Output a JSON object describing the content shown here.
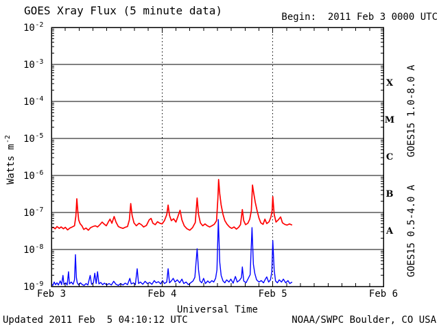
{
  "chart_data": {
    "type": "line",
    "title": "GOES Xray Flux (5 minute data)",
    "begin_label": "Begin:  2011 Feb 3 0000 UTC",
    "xlabel": "Universal Time",
    "ylabel_base": "Watts m",
    "ylabel_exponent": "-2",
    "footer_left": "Updated 2011 Feb  5 04:10:12 UTC",
    "footer_right": "NOAA/SWPC Boulder, CO USA",
    "legend_position": "right-rotated",
    "grid": true,
    "colors": {
      "axis": "#000000",
      "background": "#ffffff",
      "long_band": "#ff0000",
      "short_band": "#0000ff"
    },
    "x_axis": {
      "range_hours": [
        0,
        72
      ],
      "minor_tick_hours": 3,
      "day_line_hours": [
        24,
        48
      ],
      "ticks": [
        {
          "hours": 0,
          "label": "Feb 3"
        },
        {
          "hours": 24,
          "label": "Feb 4"
        },
        {
          "hours": 48,
          "label": "Feb 5"
        },
        {
          "hours": 72,
          "label": "Feb 6"
        }
      ]
    },
    "y_axis": {
      "scale": "log10",
      "unit": "Watts m^-2",
      "range_log10": [
        -9,
        -2
      ],
      "tick_exponents": [
        -2,
        -3,
        -4,
        -5,
        -6,
        -7,
        -8,
        -9
      ],
      "gridline_exponents": [
        -3,
        -4,
        -5,
        -6,
        -7,
        -8
      ]
    },
    "flare_classes": [
      {
        "label": "X",
        "log10_range": [
          -4,
          -3
        ]
      },
      {
        "label": "M",
        "log10_range": [
          -5,
          -4
        ]
      },
      {
        "label": "C",
        "log10_range": [
          -6,
          -5
        ]
      },
      {
        "label": "B",
        "log10_range": [
          -7,
          -6
        ]
      },
      {
        "label": "A",
        "log10_range": [
          -8,
          -7
        ]
      }
    ],
    "points_units": [
      "hours_since_begin",
      "log10_watts_per_m2"
    ],
    "series": [
      {
        "name": "GOES15 1.0-8.0 A",
        "color": "#ff0000",
        "points": [
          [
            0,
            -7.42
          ],
          [
            0.4,
            -7.4
          ],
          [
            0.8,
            -7.44
          ],
          [
            1.2,
            -7.38
          ],
          [
            1.7,
            -7.43
          ],
          [
            2.1,
            -7.39
          ],
          [
            2.6,
            -7.44
          ],
          [
            3,
            -7.4
          ],
          [
            3.5,
            -7.47
          ],
          [
            4,
            -7.42
          ],
          [
            4.5,
            -7.39
          ],
          [
            5,
            -7.36
          ],
          [
            5.3,
            -7.1
          ],
          [
            5.5,
            -6.63
          ],
          [
            5.7,
            -6.95
          ],
          [
            5.9,
            -7.2
          ],
          [
            6.2,
            -7.3
          ],
          [
            6.6,
            -7.36
          ],
          [
            7,
            -7.46
          ],
          [
            7.5,
            -7.42
          ],
          [
            8,
            -7.48
          ],
          [
            8.5,
            -7.41
          ],
          [
            9,
            -7.38
          ],
          [
            9.5,
            -7.36
          ],
          [
            10,
            -7.39
          ],
          [
            10.5,
            -7.33
          ],
          [
            11,
            -7.26
          ],
          [
            11.4,
            -7.31
          ],
          [
            11.9,
            -7.36
          ],
          [
            12.4,
            -7.24
          ],
          [
            12.7,
            -7.18
          ],
          [
            13.1,
            -7.29
          ],
          [
            13.6,
            -7.11
          ],
          [
            14,
            -7.26
          ],
          [
            14.5,
            -7.38
          ],
          [
            15,
            -7.41
          ],
          [
            15.5,
            -7.43
          ],
          [
            16,
            -7.4
          ],
          [
            16.5,
            -7.38
          ],
          [
            16.9,
            -7.2
          ],
          [
            17.2,
            -6.76
          ],
          [
            17.5,
            -7.08
          ],
          [
            17.9,
            -7.28
          ],
          [
            18.4,
            -7.36
          ],
          [
            19,
            -7.29
          ],
          [
            19.5,
            -7.33
          ],
          [
            20,
            -7.39
          ],
          [
            20.6,
            -7.35
          ],
          [
            21.2,
            -7.2
          ],
          [
            21.6,
            -7.16
          ],
          [
            22,
            -7.29
          ],
          [
            22.5,
            -7.33
          ],
          [
            23,
            -7.25
          ],
          [
            23.5,
            -7.29
          ],
          [
            24,
            -7.31
          ],
          [
            24.5,
            -7.22
          ],
          [
            25,
            -7.06
          ],
          [
            25.3,
            -6.8
          ],
          [
            25.6,
            -7.08
          ],
          [
            26,
            -7.22
          ],
          [
            26.5,
            -7.17
          ],
          [
            27,
            -7.26
          ],
          [
            27.5,
            -7.08
          ],
          [
            27.9,
            -6.94
          ],
          [
            28.3,
            -7.2
          ],
          [
            28.8,
            -7.36
          ],
          [
            29.4,
            -7.44
          ],
          [
            30,
            -7.48
          ],
          [
            30.6,
            -7.41
          ],
          [
            31.2,
            -7.27
          ],
          [
            31.6,
            -6.61
          ],
          [
            31.9,
            -7.05
          ],
          [
            32.3,
            -7.28
          ],
          [
            32.8,
            -7.36
          ],
          [
            33.3,
            -7.31
          ],
          [
            33.8,
            -7.36
          ],
          [
            34.3,
            -7.39
          ],
          [
            34.8,
            -7.36
          ],
          [
            35.3,
            -7.32
          ],
          [
            35.8,
            -7.22
          ],
          [
            36.1,
            -6.6
          ],
          [
            36.25,
            -6.11
          ],
          [
            36.5,
            -6.5
          ],
          [
            36.8,
            -6.8
          ],
          [
            37.2,
            -7.05
          ],
          [
            37.6,
            -7.22
          ],
          [
            38.1,
            -7.32
          ],
          [
            38.6,
            -7.39
          ],
          [
            39.1,
            -7.43
          ],
          [
            39.6,
            -7.39
          ],
          [
            40.1,
            -7.45
          ],
          [
            40.6,
            -7.4
          ],
          [
            41,
            -7.33
          ],
          [
            41.4,
            -6.92
          ],
          [
            41.7,
            -7.22
          ],
          [
            42.1,
            -7.33
          ],
          [
            42.6,
            -7.29
          ],
          [
            43,
            -7.18
          ],
          [
            43.35,
            -6.95
          ],
          [
            43.6,
            -6.26
          ],
          [
            43.9,
            -6.5
          ],
          [
            44.2,
            -6.72
          ],
          [
            44.6,
            -6.95
          ],
          [
            45,
            -7.15
          ],
          [
            45.4,
            -7.28
          ],
          [
            45.9,
            -7.32
          ],
          [
            46.3,
            -7.18
          ],
          [
            46.7,
            -7.3
          ],
          [
            47.2,
            -7.25
          ],
          [
            47.6,
            -7.12
          ],
          [
            47.85,
            -6.95
          ],
          [
            48,
            -6.57
          ],
          [
            48.3,
            -7.05
          ],
          [
            48.7,
            -7.26
          ],
          [
            49.2,
            -7.2
          ],
          [
            49.7,
            -7.12
          ],
          [
            50.1,
            -7.28
          ],
          [
            50.6,
            -7.32
          ],
          [
            51.1,
            -7.34
          ],
          [
            51.6,
            -7.31
          ],
          [
            52.2,
            -7.34
          ]
        ]
      },
      {
        "name": "GOES15 0.5-4.0 A",
        "color": "#0000ff",
        "points": [
          [
            0,
            -8.93
          ],
          [
            0.3,
            -8.97
          ],
          [
            0.6,
            -8.88
          ],
          [
            0.9,
            -8.95
          ],
          [
            1.2,
            -8.9
          ],
          [
            1.5,
            -8.96
          ],
          [
            1.9,
            -8.85
          ],
          [
            2.2,
            -8.95
          ],
          [
            2.5,
            -8.7
          ],
          [
            2.7,
            -8.94
          ],
          [
            3.1,
            -8.9
          ],
          [
            3.4,
            -8.96
          ],
          [
            3.7,
            -8.6
          ],
          [
            3.9,
            -8.93
          ],
          [
            4.3,
            -8.88
          ],
          [
            4.7,
            -8.94
          ],
          [
            5,
            -8.82
          ],
          [
            5.2,
            -8.14
          ],
          [
            5.4,
            -8.75
          ],
          [
            5.6,
            -8.9
          ],
          [
            5.9,
            -8.96
          ],
          [
            6.3,
            -8.9
          ],
          [
            6.7,
            -8.95
          ],
          [
            7.1,
            -8.97
          ],
          [
            7.5,
            -8.92
          ],
          [
            7.9,
            -8.96
          ],
          [
            8.4,
            -8.7
          ],
          [
            8.7,
            -8.94
          ],
          [
            9.1,
            -8.9
          ],
          [
            9.4,
            -8.64
          ],
          [
            9.7,
            -8.92
          ],
          [
            10,
            -8.6
          ],
          [
            10.3,
            -8.93
          ],
          [
            10.7,
            -8.89
          ],
          [
            11.1,
            -8.95
          ],
          [
            11.5,
            -8.91
          ],
          [
            12,
            -8.96
          ],
          [
            12.5,
            -8.92
          ],
          [
            13,
            -8.96
          ],
          [
            13.5,
            -8.86
          ],
          [
            14,
            -8.94
          ],
          [
            14.5,
            -8.97
          ],
          [
            15,
            -8.92
          ],
          [
            15.5,
            -8.96
          ],
          [
            16,
            -8.91
          ],
          [
            16.5,
            -8.95
          ],
          [
            17,
            -8.78
          ],
          [
            17.3,
            -8.93
          ],
          [
            17.8,
            -8.9
          ],
          [
            18.2,
            -8.95
          ],
          [
            18.6,
            -8.52
          ],
          [
            18.9,
            -8.92
          ],
          [
            19.3,
            -8.88
          ],
          [
            19.8,
            -8.94
          ],
          [
            20.3,
            -8.86
          ],
          [
            20.8,
            -8.92
          ],
          [
            21.3,
            -8.89
          ],
          [
            21.8,
            -8.94
          ],
          [
            22.3,
            -8.84
          ],
          [
            22.7,
            -8.9
          ],
          [
            23.2,
            -8.87
          ],
          [
            23.7,
            -8.93
          ],
          [
            24.1,
            -8.84
          ],
          [
            24.5,
            -8.92
          ],
          [
            25,
            -8.88
          ],
          [
            25.3,
            -8.52
          ],
          [
            25.6,
            -8.9
          ],
          [
            26,
            -8.85
          ],
          [
            26.4,
            -8.78
          ],
          [
            26.8,
            -8.88
          ],
          [
            27.3,
            -8.82
          ],
          [
            27.8,
            -8.9
          ],
          [
            28.3,
            -8.8
          ],
          [
            28.7,
            -8.92
          ],
          [
            29.2,
            -8.88
          ],
          [
            29.7,
            -8.95
          ],
          [
            30.2,
            -8.9
          ],
          [
            30.7,
            -8.85
          ],
          [
            31.1,
            -8.75
          ],
          [
            31.6,
            -7.98
          ],
          [
            31.9,
            -8.55
          ],
          [
            32.2,
            -8.85
          ],
          [
            32.6,
            -8.9
          ],
          [
            33,
            -8.78
          ],
          [
            33.4,
            -8.92
          ],
          [
            33.9,
            -8.85
          ],
          [
            34.3,
            -8.9
          ],
          [
            34.8,
            -8.84
          ],
          [
            35.2,
            -8.88
          ],
          [
            35.6,
            -8.78
          ],
          [
            35.9,
            -8.55
          ],
          [
            36.2,
            -7.19
          ],
          [
            36.5,
            -8.35
          ],
          [
            36.8,
            -8.7
          ],
          [
            37.2,
            -8.85
          ],
          [
            37.6,
            -8.9
          ],
          [
            38,
            -8.82
          ],
          [
            38.5,
            -8.88
          ],
          [
            38.9,
            -8.8
          ],
          [
            39.4,
            -8.91
          ],
          [
            39.9,
            -8.73
          ],
          [
            40.3,
            -8.88
          ],
          [
            40.8,
            -8.83
          ],
          [
            41.2,
            -8.76
          ],
          [
            41.4,
            -8.47
          ],
          [
            41.7,
            -8.85
          ],
          [
            42.2,
            -8.9
          ],
          [
            42.7,
            -8.78
          ],
          [
            43.1,
            -8.68
          ],
          [
            43.5,
            -7.41
          ],
          [
            43.8,
            -8.4
          ],
          [
            44.1,
            -8.65
          ],
          [
            44.5,
            -8.82
          ],
          [
            45,
            -8.88
          ],
          [
            45.5,
            -8.84
          ],
          [
            46,
            -8.9
          ],
          [
            46.4,
            -8.8
          ],
          [
            46.7,
            -8.74
          ],
          [
            47.1,
            -8.88
          ],
          [
            47.5,
            -8.82
          ],
          [
            47.8,
            -8.6
          ],
          [
            48,
            -7.76
          ],
          [
            48.3,
            -8.55
          ],
          [
            48.6,
            -8.85
          ],
          [
            49,
            -8.9
          ],
          [
            49.4,
            -8.82
          ],
          [
            49.9,
            -8.88
          ],
          [
            50.3,
            -8.8
          ],
          [
            50.8,
            -8.9
          ],
          [
            51.3,
            -8.84
          ],
          [
            51.7,
            -8.92
          ],
          [
            52.2,
            -8.88
          ]
        ]
      }
    ]
  }
}
